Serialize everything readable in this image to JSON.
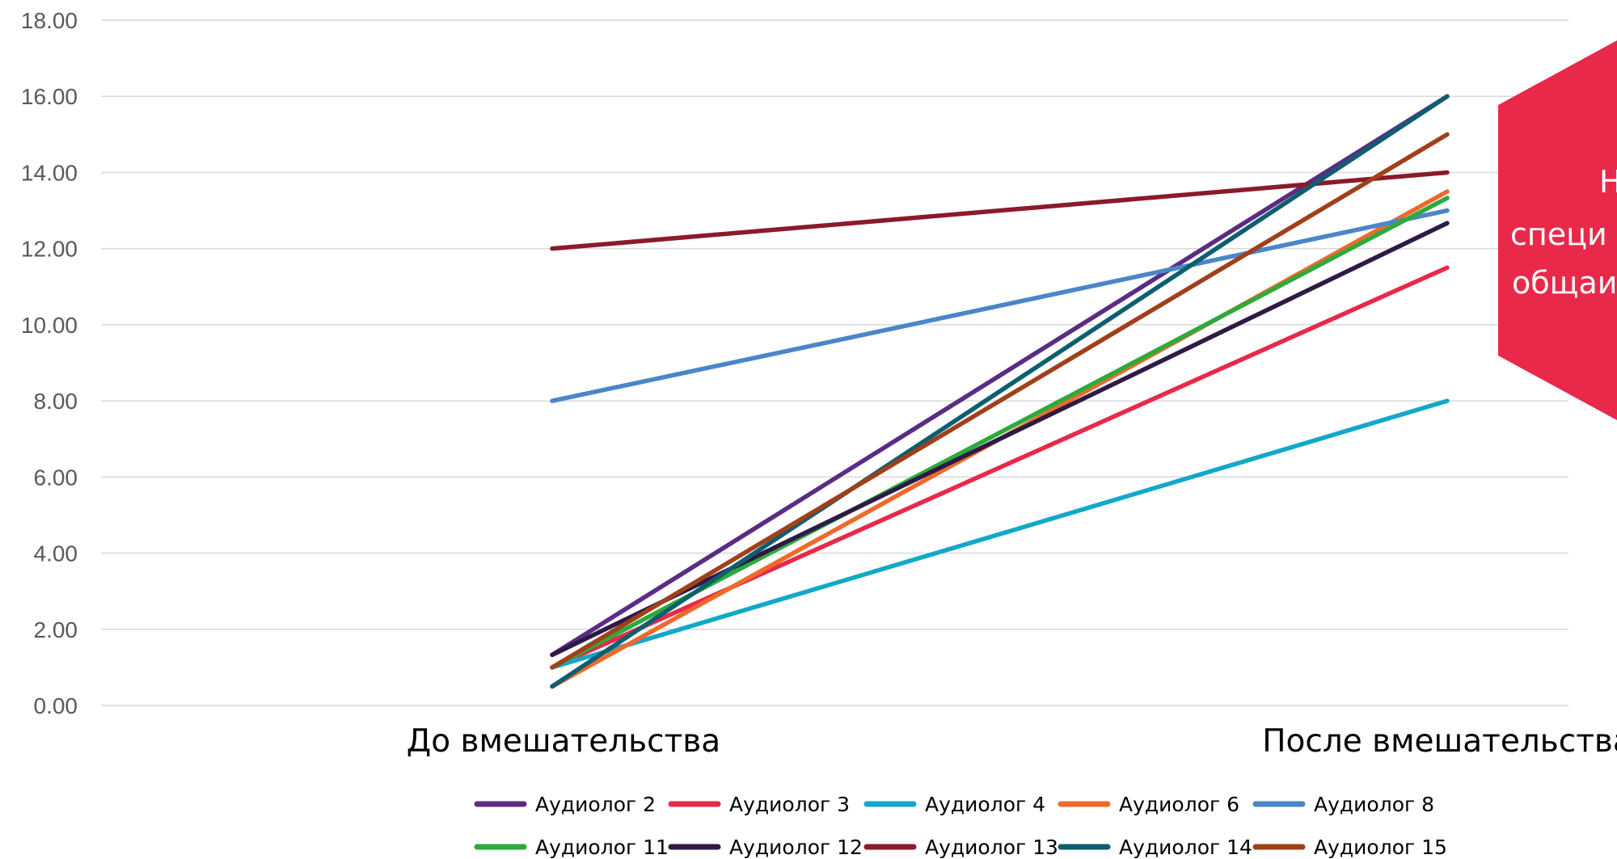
{
  "chart_data": {
    "type": "line",
    "categories": [
      "До вмешательства",
      "После вмешательства"
    ],
    "ylim": [
      0,
      18
    ],
    "yticks": [
      "0.00",
      "2.00",
      "4.00",
      "6.00",
      "8.00",
      "10.00",
      "12.00",
      "14.00",
      "16.00",
      "18.00"
    ],
    "grid": true,
    "legend_position": "bottom",
    "series": [
      {
        "name": "Аудиолог 2",
        "color": "#5b2c83",
        "values": [
          1.33,
          16.0
        ]
      },
      {
        "name": "Аудиолог 3",
        "color": "#e8294a",
        "values": [
          1.0,
          11.5
        ]
      },
      {
        "name": "Аудиолог 4",
        "color": "#12a8c9",
        "values": [
          1.0,
          8.0
        ]
      },
      {
        "name": "Аудиолог 6",
        "color": "#ee6a2c",
        "values": [
          0.5,
          13.5
        ]
      },
      {
        "name": "Аудиолог 8",
        "color": "#4a86c8",
        "values": [
          8.0,
          13.0
        ]
      },
      {
        "name": "Аудиолог 11",
        "color": "#2eaa3c",
        "values": [
          1.0,
          13.33
        ]
      },
      {
        "name": "Аудиолог 12",
        "color": "#2e1a47",
        "values": [
          1.33,
          12.67
        ]
      },
      {
        "name": "Аудиолог 13",
        "color": "#8b1a2b",
        "values": [
          12.0,
          14.0
        ]
      },
      {
        "name": "Аудиолог 14",
        "color": "#0e5e6f",
        "values": [
          0.5,
          16.0
        ]
      },
      {
        "name": "Аудиолог 15",
        "color": "#a0401a",
        "values": [
          1.0,
          15.0
        ]
      }
    ]
  },
  "callout": {
    "color": "#e8294a",
    "lines": [
      "Н",
      "специ",
      "общаи"
    ]
  }
}
